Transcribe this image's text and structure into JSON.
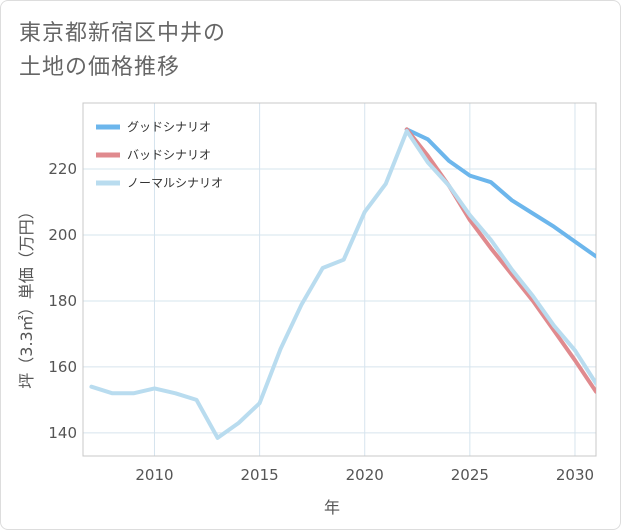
{
  "title_lines": [
    "東京都新宿区中井の",
    "土地の価格推移"
  ],
  "chart_data": {
    "type": "line",
    "title": "東京都新宿区中井の土地の価格推移",
    "xlabel": "年",
    "ylabel": "坪（3.3㎡）単価（万円）",
    "xlim": [
      2006.6,
      2031
    ],
    "ylim": [
      133,
      240
    ],
    "xticks": [
      2010,
      2015,
      2020,
      2025,
      2030
    ],
    "yticks": [
      140,
      160,
      180,
      200,
      220
    ],
    "grid": true,
    "legend_position": "top-left",
    "series": [
      {
        "name": "グッドシナリオ",
        "color": "#6cb6ec",
        "x": [
          2022,
          2023,
          2024,
          2025,
          2026,
          2027,
          2028,
          2029,
          2030,
          2031
        ],
        "y": [
          232,
          229,
          222.5,
          218,
          216,
          210.5,
          206.5,
          202.5,
          198,
          193.5
        ]
      },
      {
        "name": "バッドシナリオ",
        "color": "#e08a8e",
        "x": [
          2022,
          2023,
          2024,
          2025,
          2026,
          2027,
          2028,
          2029,
          2030,
          2031
        ],
        "y": [
          232,
          224,
          215,
          204.5,
          196,
          188,
          180,
          171,
          162,
          152.5
        ]
      },
      {
        "name": "ノーマルシナリオ",
        "color": "#b9dcef",
        "x": [
          2007,
          2008,
          2009,
          2010,
          2011,
          2012,
          2013,
          2014,
          2015,
          2016,
          2017,
          2018,
          2019,
          2020,
          2021,
          2022,
          2023,
          2024,
          2025,
          2026,
          2027,
          2028,
          2029,
          2030,
          2031
        ],
        "y": [
          154,
          152,
          152,
          153.5,
          152,
          150,
          138.5,
          143,
          149,
          165.5,
          179,
          190,
          192.5,
          207,
          215.5,
          231.5,
          222,
          215,
          206,
          198.5,
          189.5,
          181.5,
          172.5,
          165,
          155
        ]
      }
    ]
  }
}
